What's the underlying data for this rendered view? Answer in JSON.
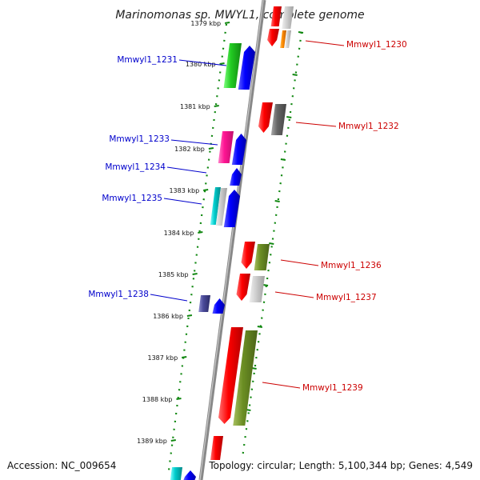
{
  "title": "Marinomonas sp. MWYL1, complete genome",
  "accession": "Accession: NC_009654",
  "topology": "Topology: circular; Length: 5,100,344 bp; Genes: 4,549",
  "ticks": [
    {
      "label": "1379 kbp",
      "pos": 0
    },
    {
      "label": "1380 kbp",
      "pos": 1
    },
    {
      "label": "1381 kbp",
      "pos": 2
    },
    {
      "label": "1382 kbp",
      "pos": 3
    },
    {
      "label": "1383 kbp",
      "pos": 4
    },
    {
      "label": "1384 kbp",
      "pos": 5
    },
    {
      "label": "1385 kbp",
      "pos": 6
    },
    {
      "label": "1386 kbp",
      "pos": 7
    },
    {
      "label": "1387 kbp",
      "pos": 8
    },
    {
      "label": "1388 kbp",
      "pos": 9
    },
    {
      "label": "1389 kbp",
      "pos": 10
    }
  ],
  "gene_labels": [
    {
      "text": "Mmwyl1_1231",
      "strand": "forward",
      "color": "#0000cc"
    },
    {
      "text": "Mmwyl1_1233",
      "strand": "forward",
      "color": "#0000cc"
    },
    {
      "text": "Mmwyl1_1234",
      "strand": "forward",
      "color": "#0000cc"
    },
    {
      "text": "Mmwyl1_1235",
      "strand": "forward",
      "color": "#0000cc"
    },
    {
      "text": "Mmwyl1_1238",
      "strand": "forward",
      "color": "#0000cc"
    },
    {
      "text": "Mmwyl1_1230",
      "strand": "reverse",
      "color": "#cc0000"
    },
    {
      "text": "Mmwyl1_1232",
      "strand": "reverse",
      "color": "#cc0000"
    },
    {
      "text": "Mmwyl1_1236",
      "strand": "reverse",
      "color": "#cc0000"
    },
    {
      "text": "Mmwyl1_1237",
      "strand": "reverse",
      "color": "#cc0000"
    },
    {
      "text": "Mmwyl1_1239",
      "strand": "reverse",
      "color": "#cc0000"
    }
  ]
}
